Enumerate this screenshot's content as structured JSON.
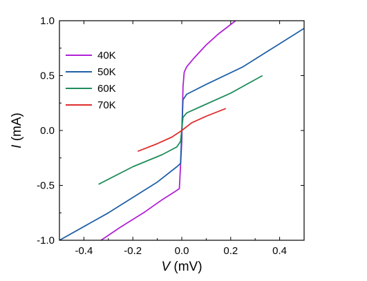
{
  "chart_data": {
    "type": "line",
    "title": "",
    "xlabel": {
      "symbol": "V",
      "unit": " (mV)"
    },
    "ylabel": {
      "symbol": "I",
      "unit": " (mA)"
    },
    "xlim": [
      -0.5,
      0.5
    ],
    "ylim": [
      -1.0,
      1.0
    ],
    "xticks": [
      -0.4,
      -0.2,
      0.0,
      0.2,
      0.4
    ],
    "xtick_labels": [
      "-0.4",
      "-0.2",
      "0.0",
      "0.2",
      "0.4"
    ],
    "yticks": [
      -1.0,
      -0.5,
      0.0,
      0.5,
      1.0
    ],
    "ytick_labels": [
      "-1.0",
      "-0.5",
      "0.0",
      "0.5",
      "1.0"
    ],
    "grid": false,
    "legend_position": "top-left",
    "series": [
      {
        "name": "40K",
        "color": "#b01fd6",
        "x": [
          -0.33,
          -0.25,
          -0.15,
          -0.08,
          -0.03,
          -0.01,
          0.0,
          0.005,
          0.01,
          0.02,
          0.05,
          0.1,
          0.15,
          0.22
        ],
        "y": [
          -1.0,
          -0.88,
          -0.74,
          -0.63,
          -0.56,
          -0.53,
          -0.1,
          0.4,
          0.53,
          0.58,
          0.66,
          0.78,
          0.88,
          1.0
        ]
      },
      {
        "name": "50K",
        "color": "#1f5fa6",
        "x": [
          -0.5,
          -0.3,
          -0.1,
          -0.02,
          -0.005,
          0.0,
          0.005,
          0.02,
          0.1,
          0.25,
          0.4,
          0.5
        ],
        "y": [
          -1.0,
          -0.75,
          -0.47,
          -0.33,
          -0.3,
          0.0,
          0.28,
          0.33,
          0.42,
          0.58,
          0.79,
          0.93
        ]
      },
      {
        "name": "60K",
        "color": "#1e8c5a",
        "x": [
          -0.34,
          -0.2,
          -0.08,
          -0.02,
          -0.005,
          0.005,
          0.02,
          0.08,
          0.2,
          0.33
        ],
        "y": [
          -0.49,
          -0.33,
          -0.22,
          -0.15,
          -0.1,
          0.12,
          0.16,
          0.22,
          0.34,
          0.5
        ]
      },
      {
        "name": "70K",
        "color": "#e02c2c",
        "x": [
          -0.18,
          -0.1,
          -0.04,
          0.0,
          0.04,
          0.1,
          0.18
        ],
        "y": [
          -0.19,
          -0.12,
          -0.06,
          0.0,
          0.07,
          0.13,
          0.2
        ]
      }
    ]
  }
}
